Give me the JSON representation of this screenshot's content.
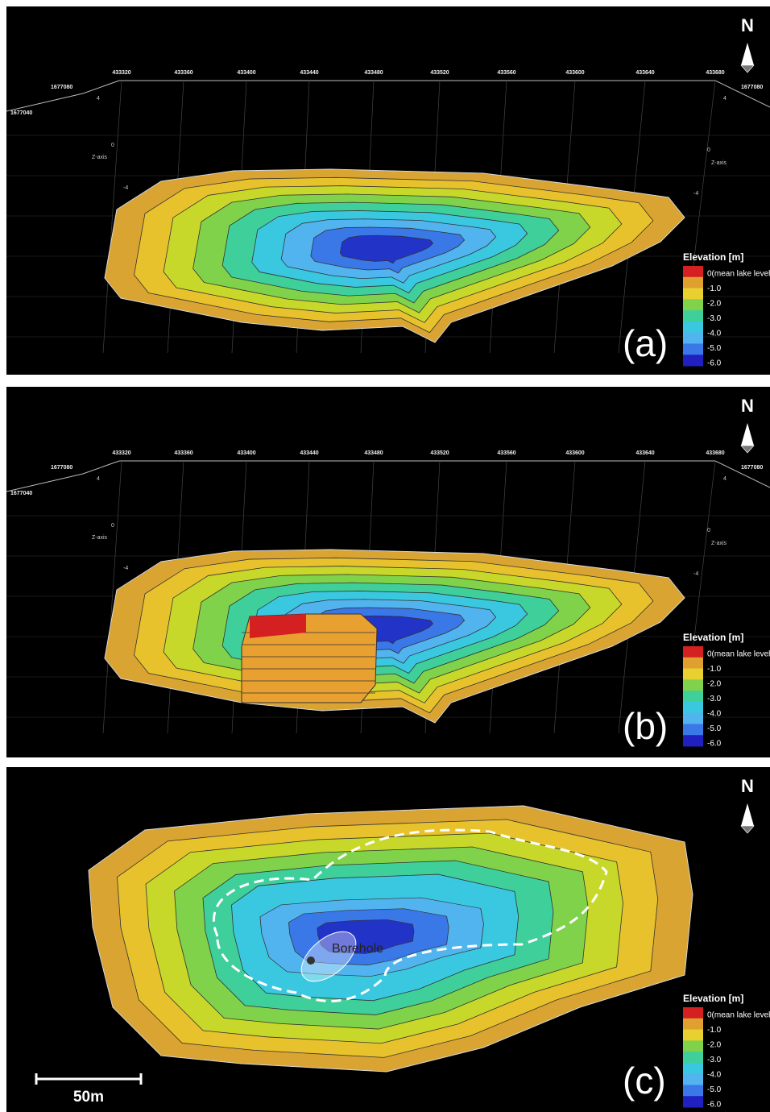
{
  "panels": [
    {
      "label": "(a)",
      "north": "N",
      "x_ticks": [
        "433320",
        "433360",
        "433400",
        "433440",
        "433480",
        "433520",
        "433560",
        "433600",
        "433640",
        "433680"
      ],
      "y_ticks": [
        "1677080",
        "1677040"
      ],
      "z_ticks": [
        "4",
        "0",
        "-4"
      ],
      "z_axis_label": "Z-axis",
      "legend": {
        "title": "Elevation [m]",
        "levels": [
          "0(mean lake level)",
          "-1.0",
          "-2.0",
          "-3.0",
          "-4.0",
          "-5.0",
          "-6.0"
        ]
      }
    },
    {
      "label": "(b)",
      "north": "N",
      "x_ticks": [
        "433320",
        "433360",
        "433400",
        "433440",
        "433480",
        "433520",
        "433560",
        "433600",
        "433640",
        "433680"
      ],
      "y_ticks": [
        "1677080",
        "1677040"
      ],
      "z_ticks": [
        "4",
        "0",
        "-4"
      ],
      "z_axis_label": "Z-axis",
      "legend": {
        "title": "Elevation [m]",
        "levels": [
          "0(mean lake level)",
          "-1.0",
          "-2.0",
          "-3.0",
          "-4.0",
          "-5.0",
          "-6.0"
        ]
      }
    },
    {
      "label": "(c)",
      "north": "N",
      "annotation": "Borehole",
      "scale_bar": "50m",
      "legend": {
        "title": "Elevation [m]",
        "levels": [
          "0(mean lake level)",
          "-1.0",
          "-2.0",
          "-3.0",
          "-4.0",
          "-5.0",
          "-6.0"
        ]
      }
    }
  ]
}
